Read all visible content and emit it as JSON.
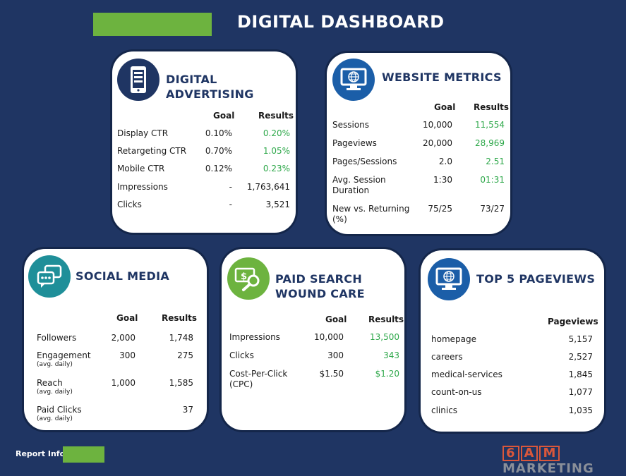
{
  "header": {
    "title": "DIGITAL DASHBOARD"
  },
  "colors": {
    "background": "#1f3563",
    "accent_green": "#6db33f",
    "good": "#2ea84a",
    "icon_blue": "#1b5ea8",
    "icon_teal": "#1f8f99",
    "brand_orange": "#d9573b"
  },
  "digital_advertising": {
    "title": "DIGITAL ADVERTISING",
    "icon": "tablet-icon",
    "col_goal": "Goal",
    "col_results": "Results",
    "rows": [
      {
        "label": "Display CTR",
        "goal": "0.10%",
        "result": "0.20%"
      },
      {
        "label": "Retargeting CTR",
        "goal": "0.70%",
        "result": "1.05%"
      },
      {
        "label": "Mobile CTR",
        "goal": "0.12%",
        "result": "0.23%"
      },
      {
        "label": "Impressions",
        "goal": "-",
        "result": "1,763,641"
      },
      {
        "label": "Clicks",
        "goal": "-",
        "result": "3,521"
      }
    ]
  },
  "website_metrics": {
    "title": "WEBSITE METRICS",
    "icon": "monitor-globe-icon",
    "col_goal": "Goal",
    "col_results": "Results",
    "rows": [
      {
        "label": "Sessions",
        "goal": "10,000",
        "result": "11,554"
      },
      {
        "label": "Pageviews",
        "goal": "20,000",
        "result": "28,969"
      },
      {
        "label": "Pages/Sessions",
        "goal": "2.0",
        "result": "2.51"
      },
      {
        "label": "Avg. Session Duration",
        "goal": "1:30",
        "result": "01:31"
      },
      {
        "label": "New vs. Returning (%)",
        "goal": "75/25",
        "result": "73/27"
      }
    ]
  },
  "social_media": {
    "title": "SOCIAL MEDIA",
    "icon": "chat-bubbles-icon",
    "col_goal": "Goal",
    "col_results": "Results",
    "rows": [
      {
        "label": "Followers",
        "sub": "",
        "goal": "2,000",
        "result": "1,748"
      },
      {
        "label": "Engagement",
        "sub": "(avg. daily)",
        "goal": "300",
        "result": "275"
      },
      {
        "label": "Reach",
        "sub": "(avg. daily)",
        "goal": "1,000",
        "result": "1,585"
      },
      {
        "label": "Paid Clicks",
        "sub": "(avg. daily)",
        "goal": "",
        "result": "37"
      }
    ]
  },
  "paid_search": {
    "title_line1": "PAID SEARCH",
    "title_line2": "WOUND CARE",
    "icon": "dollar-search-icon",
    "col_goal": "Goal",
    "col_results": "Results",
    "rows": [
      {
        "label": "Impressions",
        "goal": "10,000",
        "result": "13,500"
      },
      {
        "label": "Clicks",
        "goal": "300",
        "result": "343"
      },
      {
        "label": "Cost-Per-Click (CPC)",
        "goal": "$1.50",
        "result": "$1.20"
      }
    ]
  },
  "top_pageviews": {
    "title": "TOP 5 PAGEVIEWS",
    "icon": "monitor-globe-icon",
    "col_pageviews": "Pageviews",
    "rows": [
      {
        "label": "homepage",
        "value": "5,157"
      },
      {
        "label": "careers",
        "value": "2,527"
      },
      {
        "label": "medical-services",
        "value": "1,845"
      },
      {
        "label": "count-on-us",
        "value": "1,077"
      },
      {
        "label": "clinics",
        "value": "1,035"
      }
    ]
  },
  "footer": {
    "report_info": "Report Info.",
    "brand_box1": "6",
    "brand_box2": "A",
    "brand_box3": "M",
    "brand_text": "MARKETING"
  }
}
